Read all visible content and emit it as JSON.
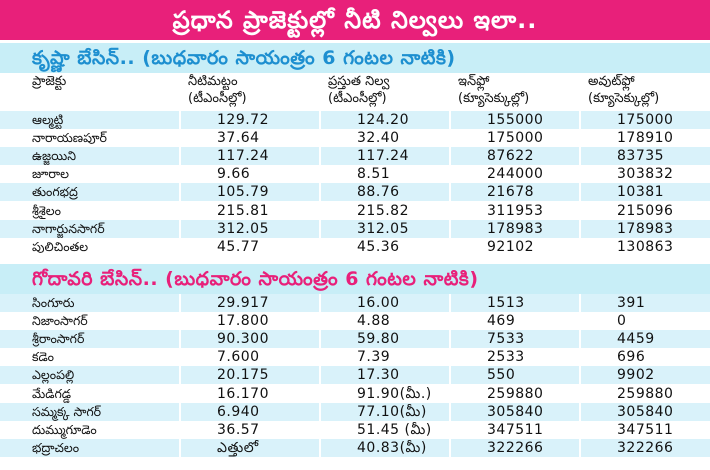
{
  "banner": {
    "title": "ప్రధాన ప్రాజెక్టుల్లో నీటి నిల్వలు ఇలా.."
  },
  "krishna": {
    "heading": "కృష్ణా బేసిన్.. (బుధవారం సాయంత్రం 6 గంటల నాటికి)",
    "columns": [
      "ప్రాజెక్టు",
      "నీటిమట్టం\n(టీఎంసీల్లో)",
      "ప్రస్తుత నిల్వ\n(టీఎంసీల్లో)",
      "ఇన్‌ఫ్లో\n(క్యూసెక్కుల్లో)",
      "అవుట్‌ఫ్లో\n(క్యూసెక్కుల్లో)"
    ],
    "rows": [
      [
        "ఆల్మట్టి",
        "129.72",
        "124.20",
        "155000",
        "175000"
      ],
      [
        "నారాయణపూర్",
        "37.64",
        "32.40",
        "175000",
        "178910"
      ],
      [
        "ఉజ్జయిని",
        "117.24",
        "117.24",
        "87622",
        "83735"
      ],
      [
        "జూరాల",
        "9.66",
        "8.51",
        "244000",
        "303832"
      ],
      [
        "తుంగభద్ర",
        "105.79",
        "88.76",
        "21678",
        "10381"
      ],
      [
        "శ్రీశైలం",
        "215.81",
        "215.82",
        "311953",
        "215096"
      ],
      [
        "నాగార్జునసాగర్",
        "312.05",
        "312.05",
        "178983",
        "178983"
      ],
      [
        "పులిచింతల",
        "45.77",
        "45.36",
        "92102",
        "130863"
      ]
    ]
  },
  "godavari": {
    "heading": "గోదావరి బేసిన్.. (బుధవారం సాయంత్రం 6 గంటల నాటికి)",
    "rows": [
      [
        "సింగూరు",
        "29.917",
        "16.00",
        "1513",
        "391"
      ],
      [
        "నిజాంసాగర్",
        "17.800",
        "4.88",
        "469",
        "0"
      ],
      [
        "శ్రీరాంసాగర్",
        "90.300",
        "59.80",
        "7533",
        "4459"
      ],
      [
        "కడెం",
        "7.600",
        "7.39",
        "2533",
        "696"
      ],
      [
        "ఎల్లంపల్లి",
        "20.175",
        "17.30",
        "550",
        "9902"
      ],
      [
        "మేడిగడ్డ",
        "16.170",
        "91.90(మీ.)",
        "259880",
        "259880"
      ],
      [
        "సమ్మక్క సాగర్",
        "6.940",
        "77.10(మీ)",
        "305840",
        "305840"
      ],
      [
        "దుమ్ముగూడెం",
        "36.57",
        "51.45 (మీ)",
        "347511",
        "347511"
      ],
      [
        "భద్రాచలం",
        "ఎత్తులో",
        "40.83(మీ)",
        "322266",
        "322266"
      ]
    ]
  },
  "colors": {
    "banner_bg": "#e8207a",
    "section_bg": "#c8eef7",
    "krishna_heading": "#1d8fd0",
    "godavari_heading": "#e8207a",
    "row_alt_bg": "#d9f2fa"
  }
}
